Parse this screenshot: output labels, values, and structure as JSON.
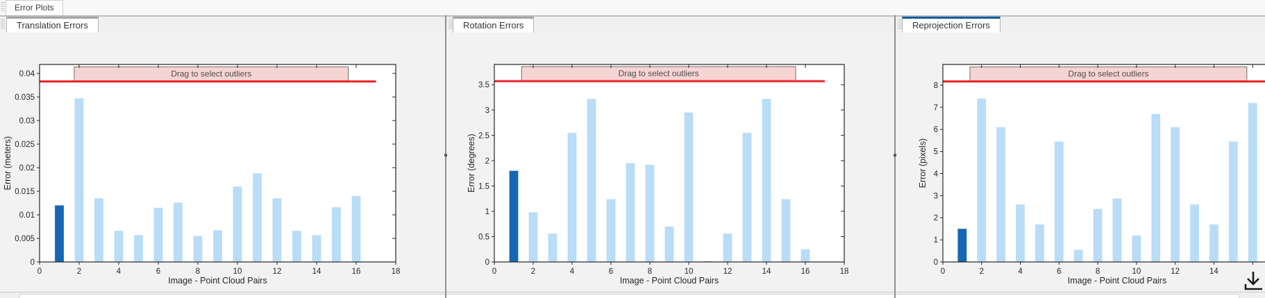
{
  "window": {
    "top_tab": "Error Plots"
  },
  "panels": [
    {
      "tab": "Translation Errors",
      "active": false
    },
    {
      "tab": "Rotation Errors",
      "active": false
    },
    {
      "tab": "Reprojection Errors",
      "active": true
    }
  ],
  "colors": {
    "bar": "#b9dcf7",
    "bar_selected": "#1467b3",
    "threshold_line": "#e8252a",
    "band_fill": "#f6d4d3",
    "band_border": "#6e6e6e",
    "axis": "#262626",
    "active_tab_accent": "#0d5aa0"
  },
  "chart_data": [
    {
      "type": "bar",
      "title": "Translation Errors",
      "xlabel": "Image - Point Cloud Pairs",
      "ylabel": "Error (meters)",
      "x": [
        1,
        2,
        3,
        4,
        5,
        6,
        7,
        8,
        9,
        10,
        11,
        12,
        13,
        14,
        15,
        16
      ],
      "values": [
        0.012,
        0.0347,
        0.0135,
        0.0066,
        0.0057,
        0.0115,
        0.0126,
        0.0055,
        0.0067,
        0.016,
        0.0188,
        0.0135,
        0.0066,
        0.0057,
        0.0116,
        0.014
      ],
      "selected_index": 0,
      "xlim": [
        0,
        18
      ],
      "ylim": [
        0,
        0.0419
      ],
      "xticks": [
        0,
        2,
        4,
        6,
        8,
        10,
        12,
        14,
        16,
        18
      ],
      "xtick_labels": [
        "0",
        "2",
        "4",
        "6",
        "8",
        "10",
        "12",
        "14",
        "16",
        "18"
      ],
      "yticks": [
        0,
        0.005,
        0.01,
        0.015,
        0.02,
        0.025,
        0.03,
        0.035,
        0.04
      ],
      "ytick_labels": [
        "0",
        "0.005",
        "0.01",
        "0.015",
        "0.02",
        "0.025",
        "0.03",
        "0.035",
        "0.04"
      ],
      "grid": false,
      "threshold": 0.0383,
      "threshold_line_end": 17,
      "band_label": "Drag to select outliers",
      "band_x": [
        1.75,
        15.6
      ]
    },
    {
      "type": "bar",
      "title": "Rotation Errors",
      "xlabel": "Image - Point Cloud Pairs",
      "ylabel": "Error (degrees)",
      "x": [
        1,
        2,
        3,
        4,
        5,
        6,
        7,
        8,
        9,
        10,
        11,
        12,
        13,
        14,
        15,
        16
      ],
      "values": [
        1.8,
        0.98,
        0.56,
        2.55,
        3.22,
        1.24,
        1.95,
        1.92,
        0.7,
        2.95,
        0.02,
        0.56,
        2.55,
        3.22,
        1.24,
        0.25
      ],
      "selected_index": 0,
      "xlim": [
        0,
        18
      ],
      "ylim": [
        0,
        3.9
      ],
      "xticks": [
        0,
        2,
        4,
        6,
        8,
        10,
        12,
        14,
        16,
        18
      ],
      "xtick_labels": [
        "0",
        "2",
        "4",
        "6",
        "8",
        "10",
        "12",
        "14",
        "16",
        "18"
      ],
      "yticks": [
        0,
        0.5,
        1,
        1.5,
        2,
        2.5,
        3,
        3.5
      ],
      "ytick_labels": [
        "0",
        "0.5",
        "1",
        "1.5",
        "2",
        "2.5",
        "3",
        "3.5"
      ],
      "grid": false,
      "threshold": 3.57,
      "threshold_line_end": 17,
      "band_label": "Drag to select outliers",
      "band_x": [
        1.4,
        15.5
      ]
    },
    {
      "type": "bar",
      "title": "Reprojection Errors",
      "xlabel": "Image - Point Cloud Pairs",
      "ylabel": "Error (pixels)",
      "x": [
        1,
        2,
        3,
        4,
        5,
        6,
        7,
        8,
        9,
        10,
        11,
        12,
        13,
        14,
        15,
        16
      ],
      "values": [
        1.5,
        7.4,
        6.1,
        2.6,
        1.7,
        5.45,
        0.55,
        2.4,
        2.87,
        1.2,
        6.7,
        6.1,
        2.6,
        1.7,
        5.45,
        7.2
      ],
      "selected_index": 0,
      "xlim": [
        0,
        18
      ],
      "ylim": [
        0,
        8.94
      ],
      "xticks": [
        0,
        2,
        4,
        6,
        8,
        10,
        12,
        14,
        16,
        18
      ],
      "xtick_labels": [
        "0",
        "2",
        "4",
        "6",
        "8",
        "10",
        "12",
        "14",
        "",
        ""
      ],
      "yticks": [
        0,
        1,
        2,
        3,
        4,
        5,
        6,
        7,
        8
      ],
      "ytick_labels": [
        "0",
        "1",
        "2",
        "3",
        "4",
        "5",
        "6",
        "7",
        "8"
      ],
      "grid": false,
      "threshold": 8.17,
      "threshold_line_end": null,
      "band_label": "Drag to select outliers",
      "band_x": [
        1.4,
        15.7
      ]
    }
  ]
}
